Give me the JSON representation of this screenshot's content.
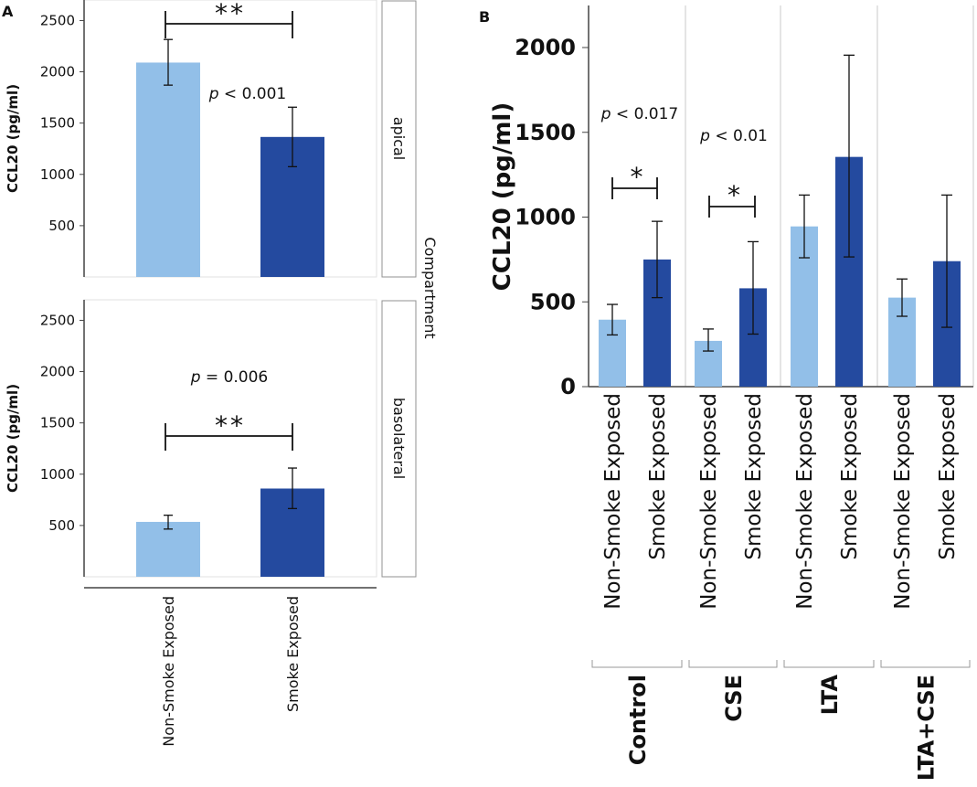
{
  "colors": {
    "light": "#92bfe8",
    "dark": "#244a9f",
    "axis": "#444444",
    "err": "#111111",
    "grid": "#c8c8c8"
  },
  "chart_data": [
    {
      "panel": "A",
      "type": "bar",
      "facet_label": "Compartment",
      "categories": [
        "Non-Smoke Exposed",
        "Smoke Exposed"
      ],
      "ylabel": "CCL20 (pg/ml)",
      "ylim": [
        0,
        2700
      ],
      "ticks": [
        500,
        1000,
        1500,
        2000,
        2500
      ],
      "facets": [
        {
          "label": "apical",
          "values": [
            2090,
            1365
          ],
          "err_low": [
            1870,
            1075
          ],
          "err_high": [
            2315,
            1655
          ],
          "p_prefix": "p",
          "p_rest": " < 0.001",
          "sig": "**"
        },
        {
          "label": "basolateral",
          "values": [
            535,
            860
          ],
          "err_low": [
            465,
            665
          ],
          "err_high": [
            600,
            1060
          ],
          "p_prefix": "p",
          "p_rest": " = 0.006",
          "sig": "**"
        }
      ]
    },
    {
      "panel": "B",
      "type": "bar",
      "ylabel": "CCL20 (pg/ml)",
      "ylim": [
        0,
        2250
      ],
      "ticks": [
        0,
        500,
        1000,
        1500,
        2000
      ],
      "bar_labels": [
        "Non-Smoke Exposed",
        "Smoke Exposed"
      ],
      "groups": [
        {
          "label": "Control",
          "values": [
            395,
            750
          ],
          "err_low": [
            305,
            525
          ],
          "err_high": [
            485,
            975
          ],
          "p_prefix": "p",
          "p_rest": " < 0.017",
          "sig": "*"
        },
        {
          "label": "CSE",
          "values": [
            270,
            580
          ],
          "err_low": [
            210,
            310
          ],
          "err_high": [
            340,
            855
          ],
          "p_prefix": "p",
          "p_rest": " < 0.01",
          "sig": "*"
        },
        {
          "label": "LTA",
          "values": [
            945,
            1355
          ],
          "err_low": [
            760,
            765
          ],
          "err_high": [
            1130,
            1955
          ],
          "p_prefix": "",
          "p_rest": "",
          "sig": ""
        },
        {
          "label": "LTA+CSE",
          "values": [
            525,
            740
          ],
          "err_low": [
            415,
            350
          ],
          "err_high": [
            635,
            1130
          ],
          "p_prefix": "",
          "p_rest": "",
          "sig": ""
        }
      ]
    }
  ],
  "labels": {
    "panel_a": "A",
    "panel_b": "B"
  }
}
